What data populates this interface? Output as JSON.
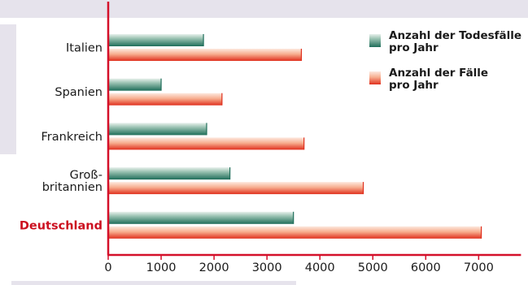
{
  "chart_data": {
    "type": "bar",
    "orientation": "horizontal",
    "categories": [
      {
        "lines": [
          "Italien"
        ],
        "highlight": false
      },
      {
        "lines": [
          "Spanien"
        ],
        "highlight": false
      },
      {
        "lines": [
          "Frankreich"
        ],
        "highlight": false
      },
      {
        "lines": [
          "Groß-",
          "britannien"
        ],
        "highlight": false
      },
      {
        "lines": [
          "Deutschland"
        ],
        "highlight": true
      }
    ],
    "series": [
      {
        "name": "Anzahl der Todesfälle pro Jahr",
        "legend_lines": [
          "Anzahl der Todesfälle",
          "pro Jahr"
        ],
        "values": [
          1800,
          1000,
          1860,
          2300,
          3500
        ],
        "color": "#1f6e5a"
      },
      {
        "name": "Anzahl der Fälle pro Jahr",
        "legend_lines": [
          "Anzahl der Fälle",
          "pro Jahr"
        ],
        "values": [
          3650,
          2150,
          3700,
          4820,
          7050
        ],
        "color": "#e0301e"
      }
    ],
    "x_ticks": [
      0,
      1000,
      2000,
      3000,
      4000,
      5000,
      6000,
      7000
    ],
    "xlim": [
      0,
      7800
    ],
    "title": "",
    "xlabel": "",
    "ylabel": "",
    "legend_position": "top-right",
    "grid": false
  },
  "colors": {
    "axis": "#d4102a",
    "highlight_label": "#cc1020",
    "background": "#e6e3ec",
    "plot_background": "#ffffff"
  }
}
